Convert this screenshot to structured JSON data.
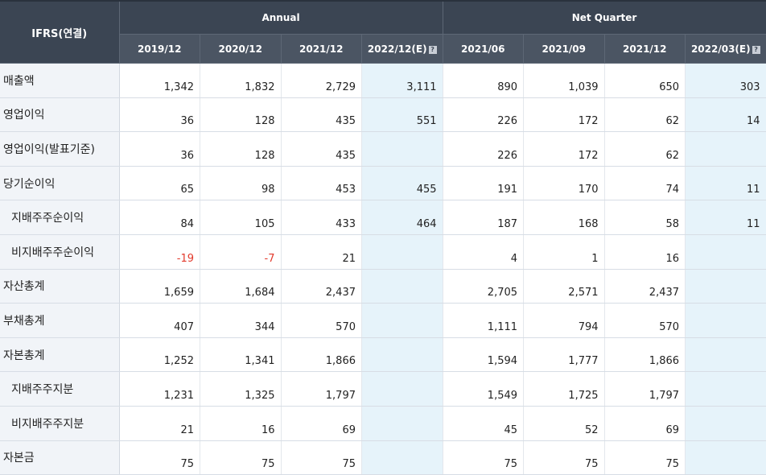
{
  "header": {
    "corner": "IFRS(연결)",
    "annual_group": "Annual",
    "quarter_group": "Net Quarter",
    "columns": [
      "2019/12",
      "2020/12",
      "2021/12",
      "2022/12(E)",
      "2021/06",
      "2021/09",
      "2021/12",
      "2022/03(E)"
    ],
    "help_icon": "?"
  },
  "rows": [
    {
      "label": "매출액",
      "values": [
        "1,342",
        "1,832",
        "2,729",
        "3,111",
        "890",
        "1,039",
        "650",
        "303"
      ]
    },
    {
      "label": "영업이익",
      "values": [
        "36",
        "128",
        "435",
        "551",
        "226",
        "172",
        "62",
        "14"
      ]
    },
    {
      "label": "영업이익(발표기준)",
      "values": [
        "36",
        "128",
        "435",
        "",
        "226",
        "172",
        "62",
        ""
      ]
    },
    {
      "label": "당기순이익",
      "values": [
        "65",
        "98",
        "453",
        "455",
        "191",
        "170",
        "74",
        "11"
      ]
    },
    {
      "label": "지배주주순이익",
      "values": [
        "84",
        "105",
        "433",
        "464",
        "187",
        "168",
        "58",
        "11"
      ]
    },
    {
      "label": "비지배주주순이익",
      "values": [
        "-19",
        "-7",
        "21",
        "",
        "4",
        "1",
        "16",
        ""
      ]
    },
    {
      "label": "자산총계",
      "values": [
        "1,659",
        "1,684",
        "2,437",
        "",
        "2,705",
        "2,571",
        "2,437",
        ""
      ]
    },
    {
      "label": "부채총계",
      "values": [
        "407",
        "344",
        "570",
        "",
        "1,111",
        "794",
        "570",
        ""
      ]
    },
    {
      "label": "자본총계",
      "values": [
        "1,252",
        "1,341",
        "1,866",
        "",
        "1,594",
        "1,777",
        "1,866",
        ""
      ]
    },
    {
      "label": "지배주주지분",
      "values": [
        "1,231",
        "1,325",
        "1,797",
        "",
        "1,549",
        "1,725",
        "1,797",
        ""
      ]
    },
    {
      "label": "비지배주주지분",
      "values": [
        "21",
        "16",
        "69",
        "",
        "45",
        "52",
        "69",
        ""
      ]
    },
    {
      "label": "자본금",
      "values": [
        "75",
        "75",
        "75",
        "",
        "75",
        "75",
        "75",
        ""
      ]
    }
  ],
  "colors": {
    "header_bg": "#3b4553",
    "label_bg": "#f1f4f8",
    "estimate_bg": "#e6f3fa",
    "negative": "#e23a2c"
  }
}
